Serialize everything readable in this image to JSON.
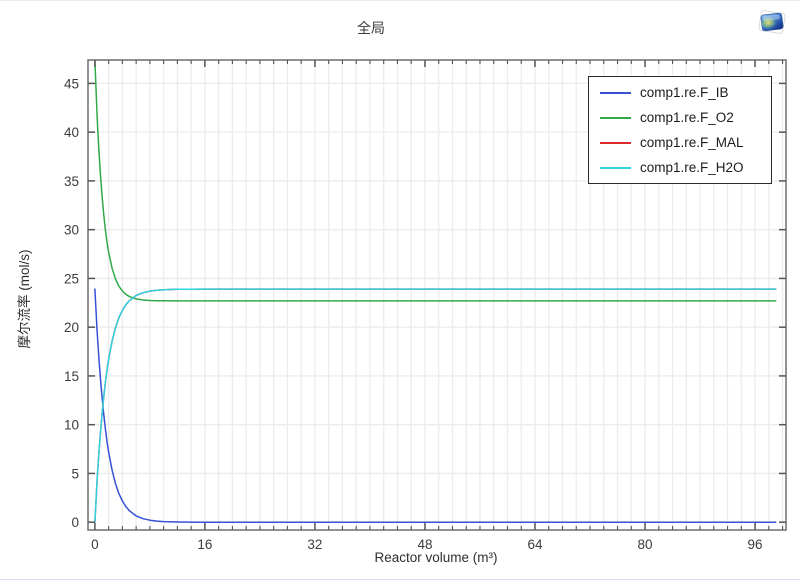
{
  "title": "全局",
  "logo": {
    "name": "comsol-logo"
  },
  "axes": {
    "x_label": "Reactor volume (m³)",
    "y_label": "摩尔流率 (mol/s)",
    "x_tick_labels": [
      "0",
      "16",
      "32",
      "48",
      "64",
      "80",
      "96"
    ],
    "y_tick_labels": [
      "0",
      "5",
      "10",
      "15",
      "20",
      "25",
      "30",
      "35",
      "40",
      "45"
    ]
  },
  "legend": {
    "entries": [
      {
        "label": "comp1.re.F_IB",
        "color": "#3751d6"
      },
      {
        "label": "comp1.re.F_O2",
        "color": "#31a949"
      },
      {
        "label": "comp1.re.F_MAL",
        "color": "#d92b2b"
      },
      {
        "label": "comp1.re.F_H2O",
        "color": "#2dd5e4"
      }
    ]
  },
  "chart_data": {
    "type": "line",
    "title": "全局",
    "xlabel": "Reactor volume (m³)",
    "ylabel": "摩尔流率 (mol/s)",
    "xlim": [
      -1,
      100.5
    ],
    "ylim": [
      -0.8,
      47.4
    ],
    "x_major_ticks": [
      0,
      16,
      32,
      48,
      64,
      80,
      96
    ],
    "x_minor_tick_step": 2,
    "y_major_ticks": [
      0,
      5,
      10,
      15,
      20,
      25,
      30,
      35,
      40,
      45
    ],
    "grid": true,
    "legend_position": "top-right",
    "note": "comp1.re.F_MAL coincides with comp1.re.F_H2O and is hidden beneath it",
    "x": [
      0,
      0.1,
      0.2,
      0.3,
      0.4,
      0.6,
      0.8,
      1,
      1.25,
      1.5,
      1.75,
      2,
      2.5,
      3,
      3.5,
      4,
      4.5,
      5,
      6,
      7,
      8,
      9,
      10,
      12,
      14,
      16,
      20,
      24,
      32,
      40,
      48,
      56,
      64,
      72,
      80,
      88,
      96,
      99
    ],
    "series": [
      {
        "name": "comp1.re.F_IB",
        "color": "#3751d6",
        "values": [
          23.9,
          22.51,
          21.2,
          19.96,
          18.8,
          16.68,
          14.79,
          13.12,
          11.29,
          9.72,
          8.36,
          7.2,
          5.33,
          3.95,
          2.93,
          2.17,
          1.61,
          1.19,
          0.65,
          0.36,
          0.2,
          0.11,
          0.06,
          0.02,
          0.01,
          0,
          0,
          0,
          0,
          0,
          0,
          0,
          0,
          0,
          0,
          0,
          0,
          0
        ]
      },
      {
        "name": "comp1.re.F_O2",
        "color": "#31a949",
        "values": [
          47.4,
          45.5,
          43.75,
          42.13,
          40.63,
          37.98,
          35.72,
          33.8,
          31.79,
          30.14,
          28.79,
          27.69,
          26.04,
          24.94,
          24.2,
          23.71,
          23.37,
          23.15,
          22.9,
          22.79,
          22.74,
          22.72,
          22.71,
          22.7,
          22.7,
          22.7,
          22.7,
          22.7,
          22.7,
          22.7,
          22.7,
          22.7,
          22.7,
          22.7,
          22.7,
          22.7,
          22.7,
          22.7
        ]
      },
      {
        "name": "comp1.re.F_MAL",
        "color": "#d92b2b",
        "values": [
          0,
          1.39,
          2.7,
          3.94,
          5.1,
          7.22,
          9.11,
          10.78,
          12.61,
          14.18,
          15.54,
          16.7,
          18.57,
          19.95,
          20.97,
          21.73,
          22.29,
          22.71,
          23.25,
          23.54,
          23.7,
          23.79,
          23.84,
          23.88,
          23.89,
          23.9,
          23.9,
          23.9,
          23.9,
          23.9,
          23.9,
          23.9,
          23.9,
          23.9,
          23.9,
          23.9,
          23.9,
          23.9
        ]
      },
      {
        "name": "comp1.re.F_H2O",
        "color": "#2dd5e4",
        "values": [
          0,
          1.39,
          2.7,
          3.94,
          5.1,
          7.22,
          9.11,
          10.78,
          12.61,
          14.18,
          15.54,
          16.7,
          18.57,
          19.95,
          20.97,
          21.73,
          22.29,
          22.71,
          23.25,
          23.54,
          23.7,
          23.79,
          23.84,
          23.88,
          23.89,
          23.9,
          23.9,
          23.9,
          23.9,
          23.9,
          23.9,
          23.9,
          23.9,
          23.9,
          23.9,
          23.9,
          23.9,
          23.9
        ]
      }
    ]
  },
  "style": {
    "frame_color": "#777777",
    "tick_color": "#555555",
    "grid_color": "#ececec",
    "tick_label_color": "#3c3c3c"
  }
}
